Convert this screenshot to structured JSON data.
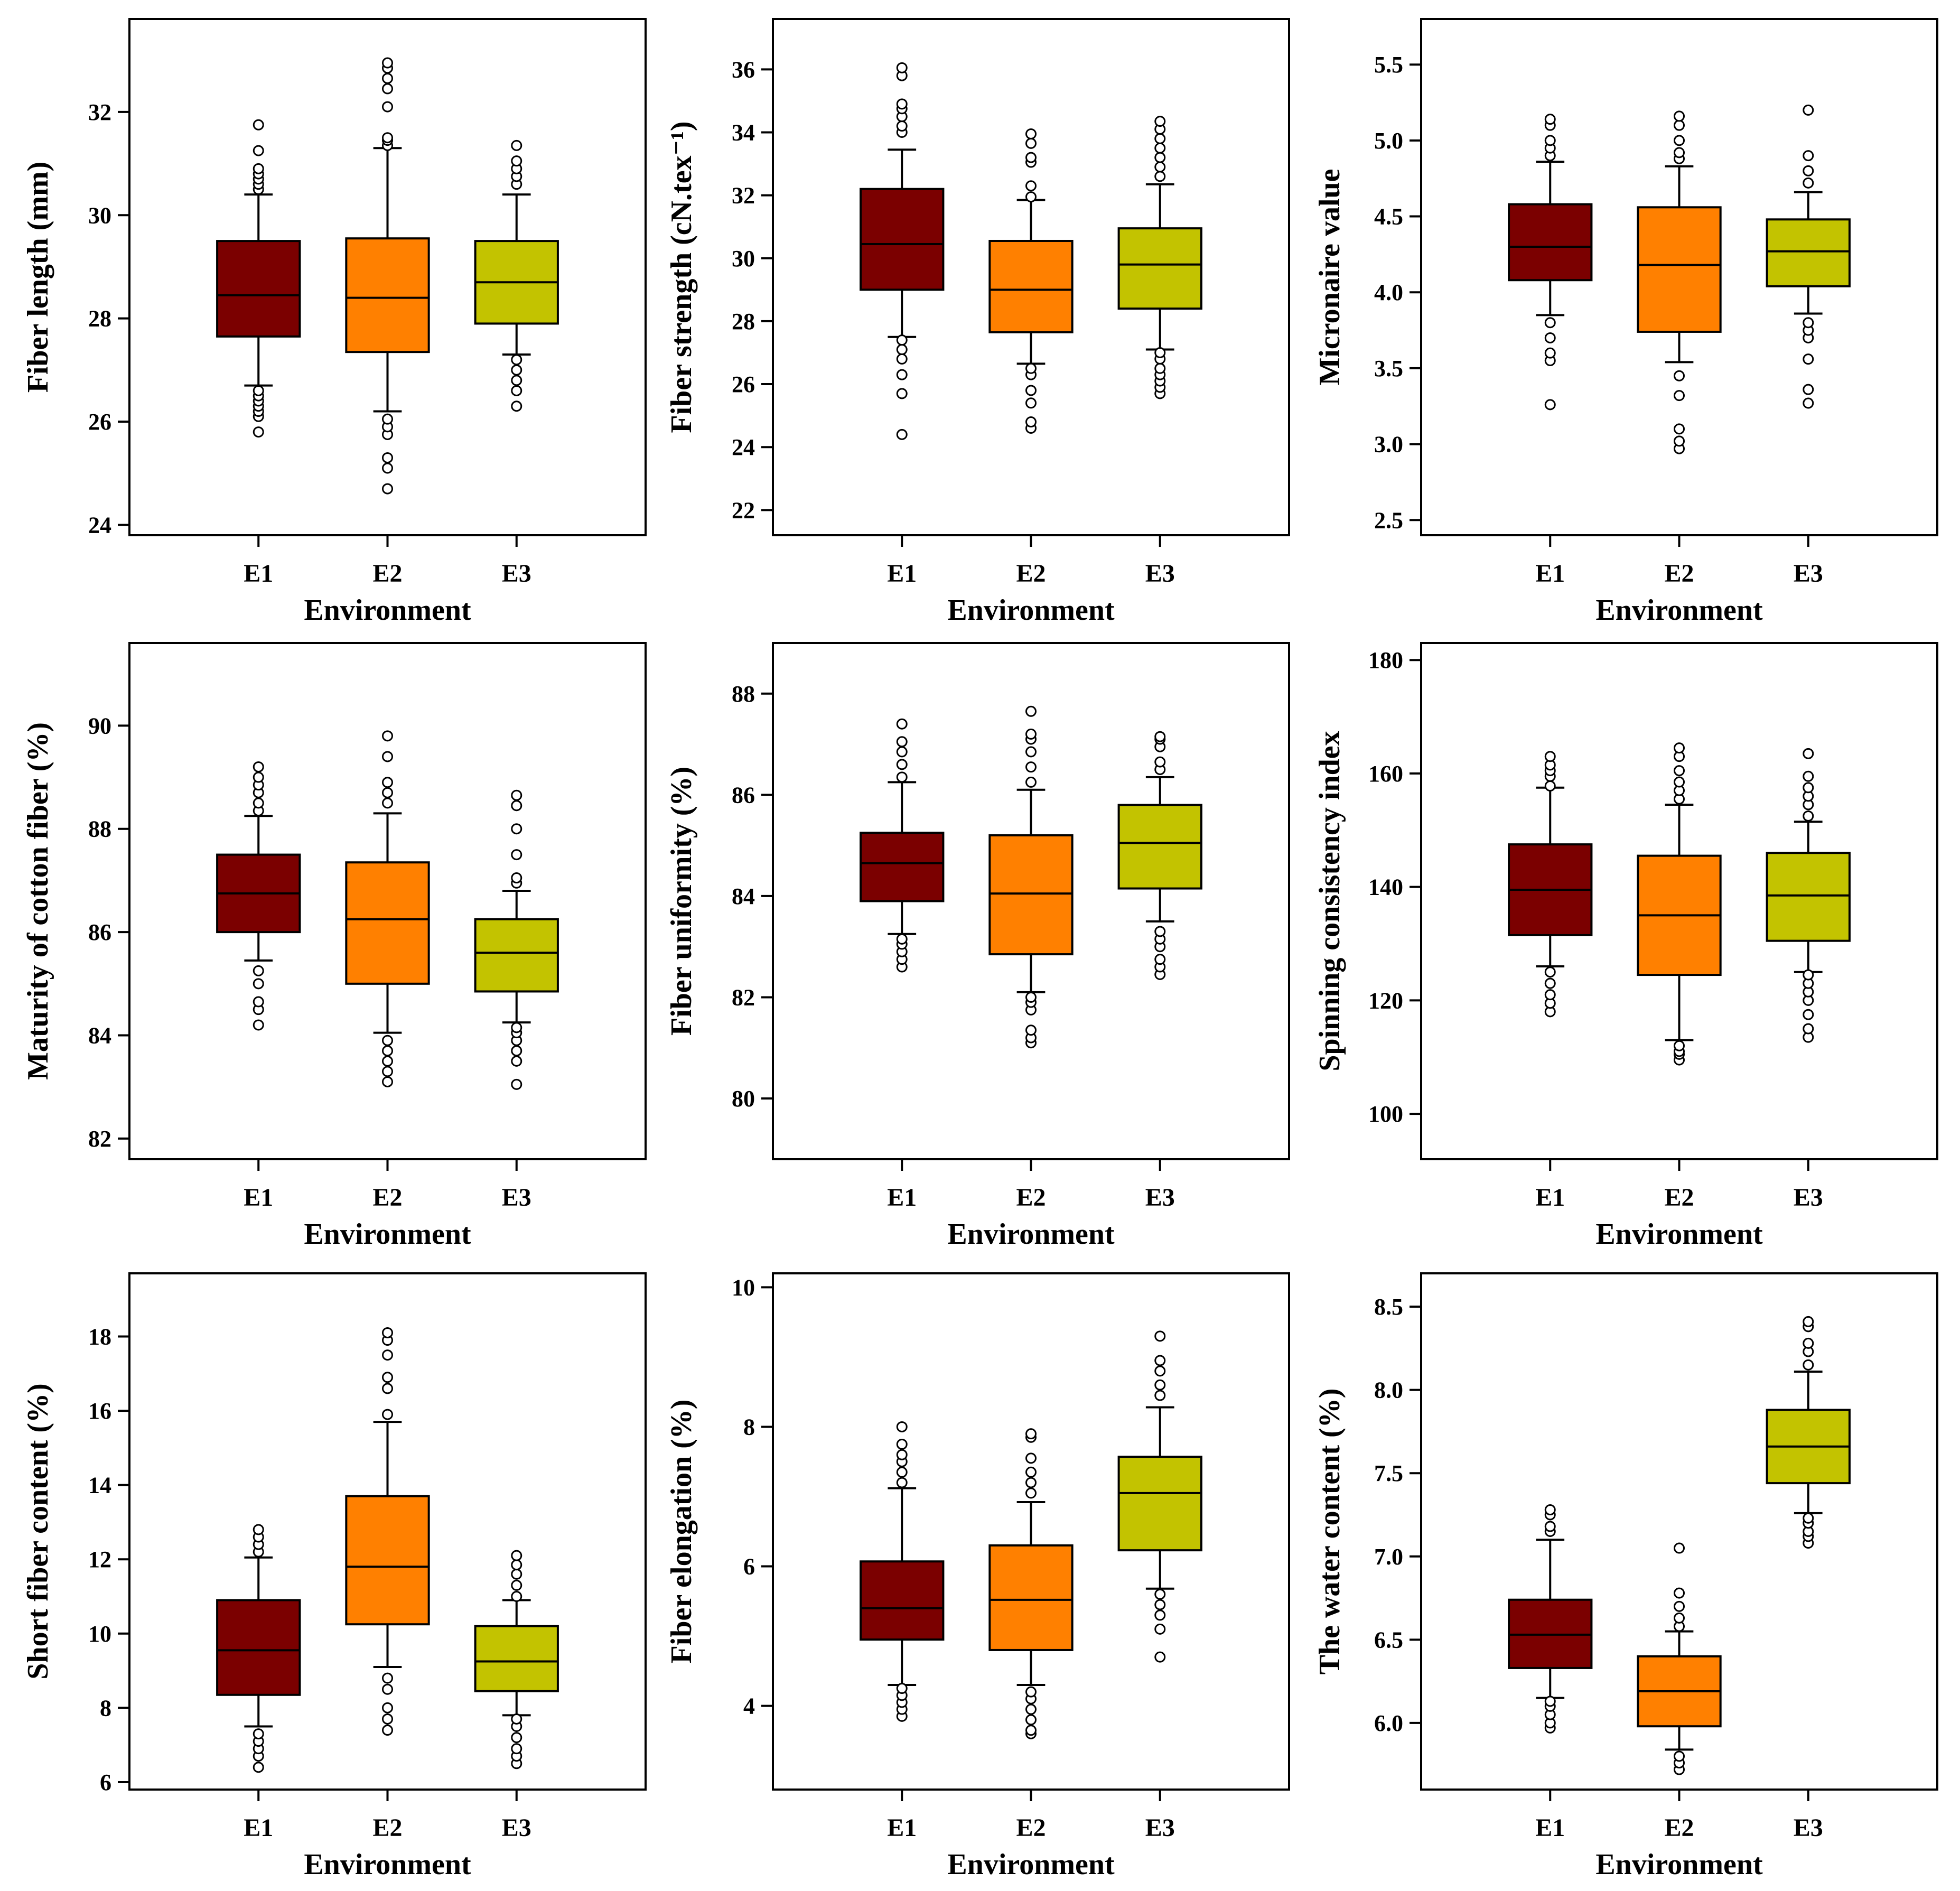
{
  "figure": {
    "x_categories": [
      "E1",
      "E2",
      "E3"
    ],
    "x_label": "Environment",
    "colors": {
      "E1": "#7b0000",
      "E2": "#ff8000",
      "E3": "#c3c300",
      "line": "#000000",
      "background": "#ffffff"
    }
  },
  "chart_data": [
    {
      "type": "boxplot",
      "ylabel": "Fiber length (mm)",
      "xlabel": "Environment",
      "ylim": [
        23.8,
        33.8
      ],
      "yticks": [
        24,
        26,
        28,
        30,
        32
      ],
      "tick_decimals": 0,
      "boxes": [
        {
          "name": "E1",
          "q1": 27.65,
          "median": 28.45,
          "q3": 29.5,
          "whisker_low": 26.7,
          "whisker_high": 30.4,
          "outliers": [
            25.8,
            26.1,
            26.2,
            26.3,
            26.4,
            26.5,
            26.6,
            30.5,
            30.6,
            30.7,
            30.8,
            30.9,
            31.25,
            31.75
          ]
        },
        {
          "name": "E2",
          "q1": 27.35,
          "median": 28.4,
          "q3": 29.55,
          "whisker_low": 26.2,
          "whisker_high": 31.3,
          "outliers": [
            24.7,
            25.1,
            25.3,
            25.75,
            25.9,
            26.05,
            31.35,
            31.45,
            31.5,
            32.1,
            32.45,
            32.65,
            32.85,
            32.95
          ]
        },
        {
          "name": "E3",
          "q1": 27.9,
          "median": 28.7,
          "q3": 29.5,
          "whisker_low": 27.3,
          "whisker_high": 30.4,
          "outliers": [
            26.3,
            26.6,
            26.8,
            27.0,
            27.2,
            30.6,
            30.75,
            30.9,
            31.05,
            31.35
          ]
        }
      ]
    },
    {
      "type": "boxplot",
      "ylabel": "Fiber strength (cN.tex⁻¹)",
      "xlabel": "Environment",
      "ylim": [
        21.2,
        37.6
      ],
      "yticks": [
        22,
        24,
        26,
        28,
        30,
        32,
        34,
        36
      ],
      "tick_decimals": 0,
      "boxes": [
        {
          "name": "E1",
          "q1": 29.0,
          "median": 30.45,
          "q3": 32.2,
          "whisker_low": 27.5,
          "whisker_high": 33.45,
          "outliers": [
            24.4,
            25.7,
            26.3,
            26.8,
            27.1,
            27.4,
            34.0,
            34.2,
            34.5,
            34.75,
            34.9,
            35.8,
            36.05
          ]
        },
        {
          "name": "E2",
          "q1": 27.65,
          "median": 29.0,
          "q3": 30.55,
          "whisker_low": 26.65,
          "whisker_high": 31.85,
          "outliers": [
            24.6,
            24.8,
            25.4,
            25.8,
            26.3,
            26.5,
            31.95,
            32.3,
            33.05,
            33.2,
            33.65,
            33.95
          ]
        },
        {
          "name": "E3",
          "q1": 28.4,
          "median": 29.8,
          "q3": 30.95,
          "whisker_low": 27.1,
          "whisker_high": 32.35,
          "outliers": [
            25.7,
            25.9,
            26.1,
            26.3,
            26.5,
            26.8,
            27.0,
            32.6,
            32.9,
            33.2,
            33.5,
            33.8,
            34.1,
            34.35
          ]
        }
      ]
    },
    {
      "type": "boxplot",
      "ylabel": "Micronaire value",
      "xlabel": "Environment",
      "ylim": [
        2.4,
        5.8
      ],
      "yticks": [
        2.5,
        3.0,
        3.5,
        4.0,
        4.5,
        5.0,
        5.5
      ],
      "tick_decimals": 1,
      "boxes": [
        {
          "name": "E1",
          "q1": 4.08,
          "median": 4.3,
          "q3": 4.58,
          "whisker_low": 3.85,
          "whisker_high": 4.86,
          "outliers": [
            3.26,
            3.55,
            3.6,
            3.7,
            3.8,
            4.9,
            4.95,
            5.0,
            5.1,
            5.14
          ]
        },
        {
          "name": "E2",
          "q1": 3.74,
          "median": 4.18,
          "q3": 4.56,
          "whisker_low": 3.54,
          "whisker_high": 4.83,
          "outliers": [
            2.97,
            3.02,
            3.1,
            3.32,
            3.45,
            4.88,
            4.92,
            5.0,
            5.1,
            5.16
          ]
        },
        {
          "name": "E3",
          "q1": 4.04,
          "median": 4.27,
          "q3": 4.48,
          "whisker_low": 3.86,
          "whisker_high": 4.66,
          "outliers": [
            3.27,
            3.36,
            3.56,
            3.7,
            3.75,
            3.8,
            4.72,
            4.8,
            4.9,
            5.2
          ]
        }
      ]
    },
    {
      "type": "boxplot",
      "ylabel": "Maturity of cotton fiber (%)",
      "xlabel": "Environment",
      "ylim": [
        81.6,
        91.6
      ],
      "yticks": [
        82,
        84,
        86,
        88,
        90
      ],
      "tick_decimals": 0,
      "boxes": [
        {
          "name": "E1",
          "q1": 86.0,
          "median": 86.75,
          "q3": 87.5,
          "whisker_low": 85.45,
          "whisker_high": 88.25,
          "outliers": [
            84.2,
            84.5,
            84.65,
            85.0,
            85.25,
            88.35,
            88.5,
            88.7,
            88.85,
            89.0,
            89.2
          ]
        },
        {
          "name": "E2",
          "q1": 85.0,
          "median": 86.25,
          "q3": 87.35,
          "whisker_low": 84.05,
          "whisker_high": 88.3,
          "outliers": [
            83.1,
            83.3,
            83.5,
            83.7,
            83.9,
            88.5,
            88.7,
            88.9,
            89.4,
            89.8
          ]
        },
        {
          "name": "E3",
          "q1": 84.85,
          "median": 85.6,
          "q3": 86.25,
          "whisker_low": 84.25,
          "whisker_high": 86.8,
          "outliers": [
            83.05,
            83.5,
            83.7,
            83.9,
            84.05,
            84.15,
            86.95,
            87.05,
            87.5,
            88.0,
            88.45,
            88.65
          ]
        }
      ]
    },
    {
      "type": "boxplot",
      "ylabel": "Fiber uniformity (%)",
      "xlabel": "Environment",
      "ylim": [
        78.8,
        89.0
      ],
      "yticks": [
        80,
        82,
        84,
        86,
        88
      ],
      "tick_decimals": 0,
      "boxes": [
        {
          "name": "E1",
          "q1": 83.9,
          "median": 84.65,
          "q3": 85.25,
          "whisker_low": 83.25,
          "whisker_high": 86.25,
          "outliers": [
            82.6,
            82.75,
            82.9,
            83.05,
            83.15,
            86.35,
            86.6,
            86.85,
            87.05,
            87.4
          ]
        },
        {
          "name": "E2",
          "q1": 82.85,
          "median": 84.05,
          "q3": 85.2,
          "whisker_low": 82.1,
          "whisker_high": 86.1,
          "outliers": [
            81.1,
            81.2,
            81.35,
            81.75,
            81.9,
            82.0,
            86.25,
            86.55,
            86.85,
            87.1,
            87.2,
            87.65
          ]
        },
        {
          "name": "E3",
          "q1": 84.15,
          "median": 85.05,
          "q3": 85.8,
          "whisker_low": 83.5,
          "whisker_high": 86.35,
          "outliers": [
            82.45,
            82.6,
            82.75,
            83.0,
            83.15,
            83.3,
            86.5,
            86.65,
            86.95,
            87.1,
            87.15
          ]
        }
      ]
    },
    {
      "type": "boxplot",
      "ylabel": "Spinning consistency index",
      "xlabel": "Environment",
      "ylim": [
        92.0,
        183.0
      ],
      "yticks": [
        100,
        120,
        140,
        160,
        180
      ],
      "tick_decimals": 0,
      "boxes": [
        {
          "name": "E1",
          "q1": 131.5,
          "median": 139.5,
          "q3": 147.5,
          "whisker_low": 126.0,
          "whisker_high": 157.5,
          "outliers": [
            118.0,
            119.5,
            121.0,
            123.0,
            125.0,
            157.8,
            159.5,
            160.5,
            161.5,
            163.0
          ]
        },
        {
          "name": "E2",
          "q1": 124.5,
          "median": 135.0,
          "q3": 145.5,
          "whisker_low": 113.0,
          "whisker_high": 154.5,
          "outliers": [
            109.5,
            110.5,
            111.0,
            112.0,
            155.5,
            157.0,
            158.5,
            160.5,
            163.0,
            164.5
          ]
        },
        {
          "name": "E3",
          "q1": 130.5,
          "median": 138.5,
          "q3": 146.0,
          "whisker_low": 125.0,
          "whisker_high": 151.5,
          "outliers": [
            113.5,
            115.0,
            117.5,
            120.0,
            121.5,
            123.0,
            124.5,
            152.5,
            154.5,
            156.0,
            157.5,
            159.5,
            163.5
          ]
        }
      ]
    },
    {
      "type": "boxplot",
      "ylabel": "Short fiber content (%)",
      "xlabel": "Environment",
      "ylim": [
        5.8,
        19.7
      ],
      "yticks": [
        6,
        8,
        10,
        12,
        14,
        16,
        18
      ],
      "tick_decimals": 0,
      "boxes": [
        {
          "name": "E1",
          "q1": 8.35,
          "median": 9.55,
          "q3": 10.9,
          "whisker_low": 7.5,
          "whisker_high": 12.05,
          "outliers": [
            6.4,
            6.7,
            6.9,
            7.1,
            7.3,
            12.2,
            12.4,
            12.6,
            12.8
          ]
        },
        {
          "name": "E2",
          "q1": 10.25,
          "median": 11.8,
          "q3": 13.7,
          "whisker_low": 9.1,
          "whisker_high": 15.7,
          "outliers": [
            7.4,
            7.7,
            8.0,
            8.5,
            8.8,
            15.9,
            16.6,
            16.9,
            17.5,
            17.9,
            18.1
          ]
        },
        {
          "name": "E3",
          "q1": 8.45,
          "median": 9.25,
          "q3": 10.2,
          "whisker_low": 7.8,
          "whisker_high": 10.9,
          "outliers": [
            6.5,
            6.7,
            6.9,
            7.2,
            7.5,
            7.7,
            11.0,
            11.3,
            11.6,
            11.85,
            12.1
          ]
        }
      ]
    },
    {
      "type": "boxplot",
      "ylabel": "Fiber elongation (%)",
      "xlabel": "Environment",
      "ylim": [
        2.8,
        10.2
      ],
      "yticks": [
        4,
        6,
        8,
        10
      ],
      "tick_decimals": 0,
      "boxes": [
        {
          "name": "E1",
          "q1": 4.95,
          "median": 5.4,
          "q3": 6.07,
          "whisker_low": 4.3,
          "whisker_high": 7.12,
          "outliers": [
            3.85,
            3.95,
            4.05,
            4.15,
            4.25,
            7.2,
            7.35,
            7.5,
            7.6,
            7.75,
            8.0
          ]
        },
        {
          "name": "E2",
          "q1": 4.8,
          "median": 5.52,
          "q3": 6.3,
          "whisker_low": 4.3,
          "whisker_high": 6.92,
          "outliers": [
            3.6,
            3.65,
            3.8,
            3.95,
            4.1,
            4.2,
            7.05,
            7.2,
            7.35,
            7.55,
            7.85,
            7.9
          ]
        },
        {
          "name": "E3",
          "q1": 6.23,
          "median": 7.05,
          "q3": 7.57,
          "whisker_low": 5.68,
          "whisker_high": 8.28,
          "outliers": [
            4.7,
            5.1,
            5.3,
            5.45,
            5.6,
            8.45,
            8.6,
            8.8,
            8.95,
            9.3
          ]
        }
      ]
    },
    {
      "type": "boxplot",
      "ylabel": "The water content (%)",
      "xlabel": "Environment",
      "ylim": [
        5.6,
        8.7
      ],
      "yticks": [
        6.0,
        6.5,
        7.0,
        7.5,
        8.0,
        8.5
      ],
      "tick_decimals": 1,
      "boxes": [
        {
          "name": "E1",
          "q1": 6.33,
          "median": 6.53,
          "q3": 6.74,
          "whisker_low": 6.15,
          "whisker_high": 7.1,
          "outliers": [
            5.97,
            6.0,
            6.05,
            6.1,
            6.13,
            7.15,
            7.18,
            7.25,
            7.28
          ]
        },
        {
          "name": "E2",
          "q1": 5.98,
          "median": 6.19,
          "q3": 6.4,
          "whisker_low": 5.84,
          "whisker_high": 6.55,
          "outliers": [
            5.72,
            5.76,
            5.8,
            6.58,
            6.63,
            6.7,
            6.78,
            7.05
          ]
        },
        {
          "name": "E3",
          "q1": 7.44,
          "median": 7.66,
          "q3": 7.88,
          "whisker_low": 7.26,
          "whisker_high": 8.11,
          "outliers": [
            7.08,
            7.12,
            7.15,
            7.2,
            7.23,
            8.15,
            8.23,
            8.28,
            8.38,
            8.41
          ]
        }
      ]
    }
  ]
}
